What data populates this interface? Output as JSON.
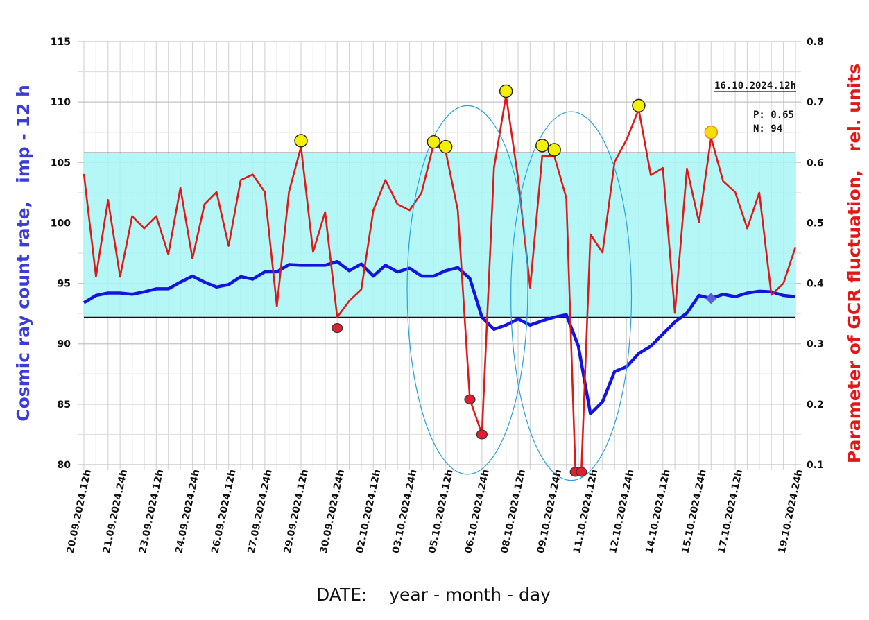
{
  "chart_data": {
    "type": "line",
    "xlabel": "DATE:    year - month - day",
    "ylabel_left": "Cosmic ray count rate,   imp - 12 h",
    "ylabel_right": "Parameter of GCR fluctuation,   rel. units",
    "ylim_left": [
      80,
      115
    ],
    "ylim_right": [
      0.1,
      0.8
    ],
    "yticks_left": [
      "80",
      "85",
      "90",
      "95",
      "100",
      "105",
      "110",
      "115"
    ],
    "yticks_right": [
      "0.1",
      "0.2",
      "0.3",
      "0.4",
      "0.5",
      "0.6",
      "0.7",
      "0.8"
    ],
    "grid": true,
    "x_count": 60,
    "xtick_labels": [
      {
        "i": 0,
        "label": "20.09.2024.12h"
      },
      {
        "i": 3,
        "label": "21.09.2024.24h"
      },
      {
        "i": 6,
        "label": "23.09.2024.12h"
      },
      {
        "i": 9,
        "label": "24.09.2024.24h"
      },
      {
        "i": 12,
        "label": "26.09.2024.12h"
      },
      {
        "i": 15,
        "label": "27.09.2024.24h"
      },
      {
        "i": 18,
        "label": "29.09.2024.12h"
      },
      {
        "i": 21,
        "label": "30.09.2024.24h"
      },
      {
        "i": 24,
        "label": "02.10.2024.12h"
      },
      {
        "i": 27,
        "label": "03.10.2024.24h"
      },
      {
        "i": 30,
        "label": "05.10.2024.12h"
      },
      {
        "i": 33,
        "label": "06.10.2024.24h"
      },
      {
        "i": 36,
        "label": "08.10.2024.12h"
      },
      {
        "i": 39,
        "label": "09.10.2024.24h"
      },
      {
        "i": 42,
        "label": "11.10.2024.12h"
      },
      {
        "i": 45,
        "label": "12.10.2024.24h"
      },
      {
        "i": 48,
        "label": "14.10.2024.12h"
      },
      {
        "i": 51,
        "label": "15.10.2024.24h"
      },
      {
        "i": 54,
        "label": "17.10.2024.12h"
      },
      {
        "i": 59,
        "label": "19.10.2024.24h"
      }
    ],
    "band_left_units": [
      92.2,
      105.8
    ],
    "series": [
      {
        "name": "Cosmic ray count rate",
        "axis": "left",
        "color": "#1414e0",
        "values": [
          93.4,
          94.0,
          94.2,
          94.2,
          94.1,
          94.3,
          94.55,
          94.55,
          95.1,
          95.6,
          95.1,
          94.7,
          94.9,
          95.55,
          95.35,
          95.95,
          95.95,
          96.55,
          96.5,
          96.5,
          96.5,
          96.8,
          96.05,
          96.6,
          95.6,
          96.5,
          95.95,
          96.25,
          95.6,
          95.6,
          96.05,
          96.3,
          95.4,
          92.2,
          91.2,
          91.55,
          92.05,
          91.55,
          91.9,
          92.2,
          92.4,
          89.8,
          84.2,
          85.2,
          87.7,
          88.1,
          89.2,
          89.8,
          90.8,
          91.8,
          92.55,
          94.0,
          93.75,
          94.1,
          93.9,
          94.2,
          94.35,
          94.3,
          94.0,
          93.9
        ]
      },
      {
        "name": "Parameter of GCR fluctuation",
        "axis": "right",
        "color": "#e01818",
        "x": [
          0,
          1,
          2,
          3,
          4,
          5,
          6,
          7,
          8,
          9,
          10,
          11,
          12,
          13,
          14,
          15,
          16,
          17,
          18,
          19,
          20,
          21,
          22,
          23,
          24,
          25,
          26,
          27,
          28,
          29,
          30,
          31,
          32,
          33,
          34,
          35,
          36,
          37,
          38,
          39,
          40,
          40.75,
          41.25,
          42,
          43,
          44,
          45,
          46,
          47,
          48,
          49,
          50,
          51,
          52,
          53,
          54,
          55,
          56,
          57,
          58,
          59
        ],
        "values": [
          0.581,
          0.411,
          0.538,
          0.411,
          0.511,
          0.491,
          0.511,
          0.448,
          0.558,
          0.441,
          0.531,
          0.551,
          0.462,
          0.571,
          0.58,
          0.551,
          0.362,
          0.551,
          0.626,
          0.452,
          0.518,
          0.344,
          0.371,
          0.39,
          0.521,
          0.571,
          0.531,
          0.521,
          0.55,
          0.631,
          0.618,
          0.521,
          0.208,
          0.151,
          0.591,
          0.711,
          0.574,
          0.393,
          0.611,
          0.611,
          0.541,
          0.091,
          0.091,
          0.481,
          0.451,
          0.601,
          0.638,
          0.688,
          0.579,
          0.591,
          0.351,
          0.59,
          0.501,
          0.641,
          0.569,
          0.551,
          0.491,
          0.55,
          0.381,
          0.4,
          0.46
        ]
      }
    ],
    "high_markers": [
      {
        "x": 18,
        "value": 0.636,
        "color": "#f4f000"
      },
      {
        "x": 29,
        "value": 0.634,
        "color": "#f4f000"
      },
      {
        "x": 30,
        "value": 0.626,
        "color": "#f4f000"
      },
      {
        "x": 35,
        "value": 0.718,
        "color": "#f4f000"
      },
      {
        "x": 38,
        "value": 0.628,
        "color": "#f4f000"
      },
      {
        "x": 39,
        "value": 0.621,
        "color": "#f4f000"
      },
      {
        "x": 46,
        "value": 0.694,
        "color": "#f4f000"
      },
      {
        "x": 52,
        "value": 0.65,
        "color": "#f4e000",
        "stroke": "#f08020"
      }
    ],
    "low_markers": [
      {
        "x": 21,
        "value": 0.326
      },
      {
        "x": 32,
        "value": 0.208
      },
      {
        "x": 33,
        "value": 0.15
      },
      {
        "x": 40.75,
        "value": 0.088
      },
      {
        "x": 41.25,
        "value": 0.088
      }
    ],
    "current_point": {
      "x": 52,
      "value": 93.75,
      "color": "#5a5ae8"
    },
    "ellipses_left_units": [
      {
        "x_from": 26.8,
        "x_to": 36.8,
        "y_from": 79.2,
        "y_to": 109.7
      },
      {
        "x_from": 35.4,
        "x_to": 45.4,
        "y_from": 78.7,
        "y_to": 109.2
      }
    ],
    "annotation": {
      "date": "16.10.2024.12h",
      "p": "P: 0.65",
      "n": "N: 94"
    }
  }
}
